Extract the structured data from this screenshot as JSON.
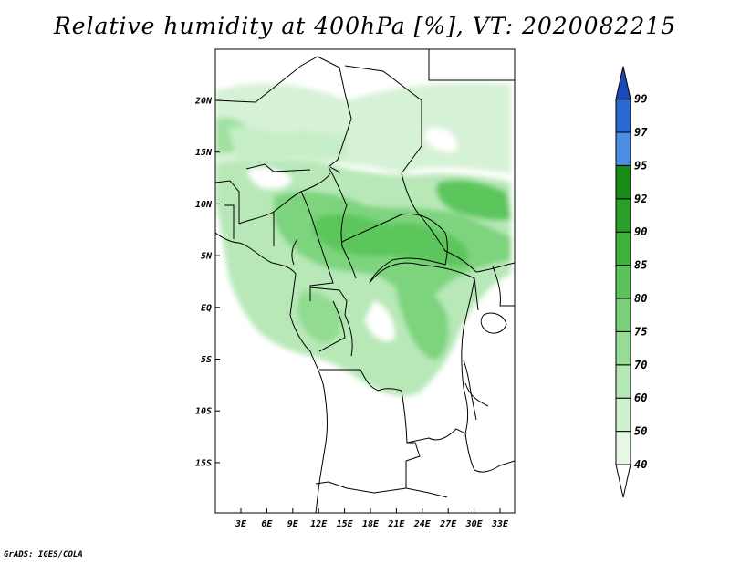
{
  "title": "Relative humidity at 400hPa [%], VT: 2020082215",
  "credit": "GrADS: IGES/COLA",
  "map": {
    "region": "Central Africa",
    "lat_labels": [
      "20N",
      "15N",
      "10N",
      "5N",
      "EQ",
      "5S",
      "10S",
      "15S"
    ],
    "lon_labels": [
      "3E",
      "6E",
      "9E",
      "12E",
      "15E",
      "18E",
      "21E",
      "24E",
      "27E",
      "30E",
      "33E"
    ]
  },
  "colorbar": {
    "levels": [
      "40",
      "50",
      "60",
      "70",
      "75",
      "80",
      "85",
      "90",
      "92",
      "95",
      "97",
      "99"
    ],
    "colors": [
      "#ffffff",
      "#e6f7e6",
      "#cdf0cd",
      "#b4e8b4",
      "#96dc96",
      "#78d078",
      "#5ac45a",
      "#3cb43c",
      "#28a028",
      "#168c16",
      "#4a8ee8",
      "#2a6ad4",
      "#1a4ab8"
    ]
  }
}
